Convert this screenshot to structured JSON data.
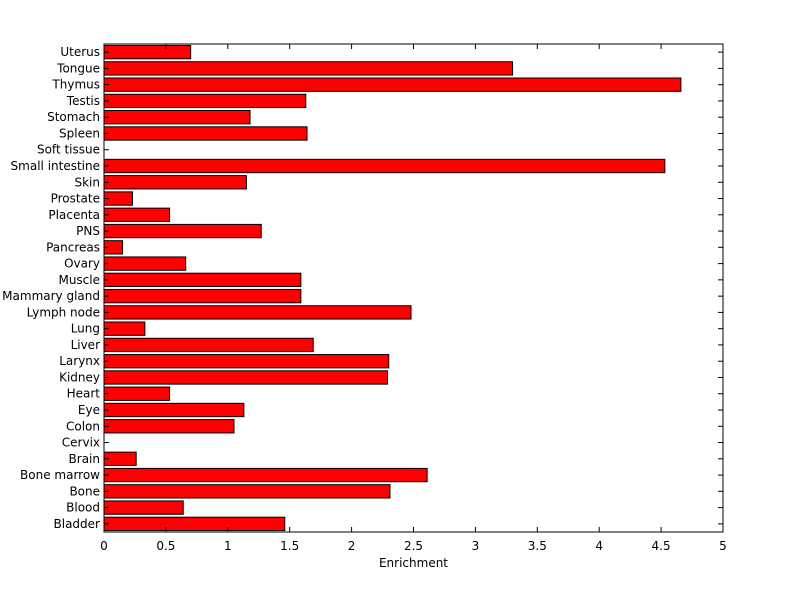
{
  "chart_data": {
    "type": "bar",
    "orientation": "horizontal",
    "title": "",
    "xlabel": "Enrichment",
    "ylabel": "",
    "xlim": [
      0,
      5
    ],
    "xticks": [
      "0",
      "0.5",
      "1",
      "1.5",
      "2",
      "2.5",
      "3",
      "3.5",
      "4",
      "4.5",
      "5"
    ],
    "grid": false,
    "bar_color": "#ff0000",
    "bar_edge_color": "#000000",
    "categories": [
      "Uterus",
      "Tongue",
      "Thymus",
      "Testis",
      "Stomach",
      "Spleen",
      "Soft tissue",
      "Small intestine",
      "Skin",
      "Prostate",
      "Placenta",
      "PNS",
      "Pancreas",
      "Ovary",
      "Muscle",
      "Mammary gland",
      "Lymph node",
      "Lung",
      "Liver",
      "Larynx",
      "Kidney",
      "Heart",
      "Eye",
      "Colon",
      "Cervix",
      "Brain",
      "Bone marrow",
      "Bone",
      "Blood",
      "Bladder"
    ],
    "values": [
      0.7,
      3.3,
      4.66,
      1.63,
      1.18,
      1.64,
      0,
      4.53,
      1.15,
      0.23,
      0.53,
      1.27,
      0.15,
      0.66,
      1.59,
      1.59,
      2.48,
      0.33,
      1.69,
      2.3,
      2.29,
      0.53,
      1.13,
      1.05,
      0,
      0.26,
      2.61,
      2.31,
      0.64,
      1.46
    ]
  }
}
